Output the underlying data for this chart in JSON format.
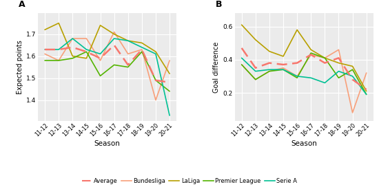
{
  "seasons": [
    "11-12",
    "12-13",
    "13-14",
    "14-15",
    "15-16",
    "16-17",
    "17-18",
    "18-19",
    "19-20",
    "20-21"
  ],
  "expected_points": {
    "Average": [
      1.63,
      1.63,
      1.64,
      1.62,
      1.59,
      1.65,
      1.56,
      1.63,
      1.49,
      1.48
    ],
    "Bundesliga": [
      1.61,
      1.58,
      1.68,
      1.68,
      1.58,
      1.71,
      1.61,
      1.63,
      1.4,
      1.58
    ],
    "LaLiga": [
      1.72,
      1.75,
      1.6,
      1.59,
      1.74,
      1.7,
      1.67,
      1.66,
      1.62,
      1.52
    ],
    "Premier League": [
      1.58,
      1.58,
      1.59,
      1.62,
      1.51,
      1.56,
      1.55,
      1.62,
      1.49,
      1.44
    ],
    "Serie A": [
      1.63,
      1.63,
      1.68,
      1.63,
      1.61,
      1.68,
      1.67,
      1.64,
      1.61,
      1.33
    ]
  },
  "goal_difference": {
    "Average": [
      0.47,
      0.35,
      0.38,
      0.37,
      0.38,
      0.43,
      0.38,
      0.41,
      0.28,
      0.22
    ],
    "Bundesliga": [
      0.37,
      0.28,
      0.33,
      0.35,
      0.3,
      0.43,
      0.41,
      0.46,
      0.08,
      0.32
    ],
    "LaLiga": [
      0.61,
      0.52,
      0.45,
      0.42,
      0.58,
      0.46,
      0.41,
      0.38,
      0.36,
      0.21
    ],
    "Premier League": [
      0.37,
      0.28,
      0.33,
      0.34,
      0.29,
      0.44,
      0.41,
      0.29,
      0.34,
      0.19
    ],
    "Serie A": [
      0.41,
      0.33,
      0.34,
      0.34,
      0.3,
      0.29,
      0.26,
      0.33,
      0.3,
      0.19
    ]
  },
  "colors": {
    "Average": "#F8766D",
    "Bundesliga": "#F8A07A",
    "LaLiga": "#B8A000",
    "Premier League": "#53B400",
    "Serie A": "#00C094"
  },
  "ylim_A": [
    1.305,
    1.795
  ],
  "ylim_B": [
    0.03,
    0.68
  ],
  "yticks_A": [
    1.4,
    1.5,
    1.6,
    1.7
  ],
  "yticks_B": [
    0.2,
    0.4,
    0.6
  ],
  "ylabel_A": "Expected points",
  "ylabel_B": "Goal difference",
  "xlabel": "Season",
  "label_A": "A",
  "label_B": "B",
  "background_color": "#EBEBEB",
  "grid_color": "#FFFFFF",
  "plot_order": [
    "Bundesliga",
    "LaLiga",
    "Premier League",
    "Serie A",
    "Average"
  ]
}
